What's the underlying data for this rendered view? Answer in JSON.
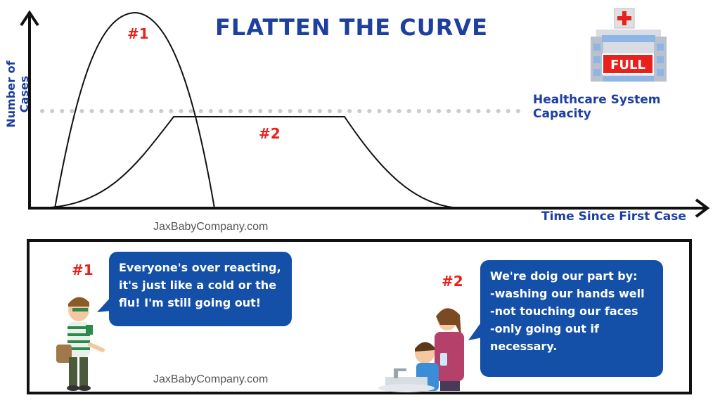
{
  "title": "FLATTEN THE CURVE",
  "chart": {
    "ylabel": "Number of Cases",
    "xlabel": "Time Since First Case",
    "capacity_label": "Healthcare System Capacity",
    "curve1_label": "#1",
    "curve2_label": "#2"
  },
  "hospital": {
    "icon": "hospital-icon",
    "sign": "FULL"
  },
  "watermark": "JaxBabyCompany.com",
  "panel": {
    "person1": {
      "label": "#1",
      "lines": [
        "Everyone's over reacting,",
        "it's just like a cold or the",
        "flu! I'm still going out!"
      ]
    },
    "person2": {
      "label": "#2",
      "lines": [
        "We're doig our part by:",
        "-washing our hands well",
        "-not touching our faces",
        "-only going out if",
        "necessary."
      ]
    }
  },
  "colors": {
    "title_blue": "#1d3f9e",
    "accent_red": "#e8211c",
    "bubble_blue": "#1450a8"
  }
}
